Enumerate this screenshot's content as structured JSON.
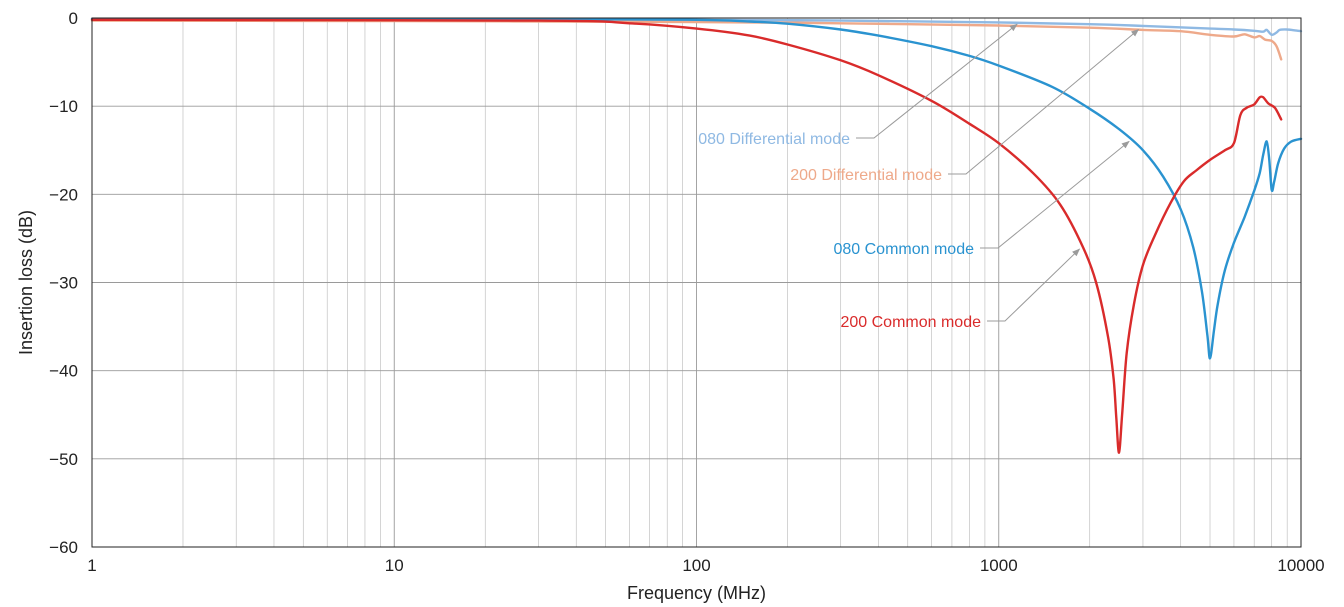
{
  "chart_data": {
    "type": "line",
    "xlabel": "Frequency (MHz)",
    "ylabel": "Insertion loss (dB)",
    "xscale": "log",
    "xlim": [
      1,
      10000
    ],
    "ylim": [
      -60,
      0
    ],
    "grid": true,
    "x_ticks": [
      "1",
      "10",
      "100",
      "1000",
      "10000"
    ],
    "y_ticks": [
      "0",
      "−10",
      "−20",
      "−30",
      "−40",
      "−50",
      "−60"
    ],
    "series": [
      {
        "name": "080 Differential mode",
        "color": "#8fb9e3",
        "points": [
          [
            1,
            -0.1
          ],
          [
            10,
            -0.15
          ],
          [
            100,
            -0.2
          ],
          [
            300,
            -0.3
          ],
          [
            1000,
            -0.5
          ],
          [
            2000,
            -0.7
          ],
          [
            3000,
            -0.9
          ],
          [
            5000,
            -1.2
          ],
          [
            6000,
            -1.3
          ],
          [
            7000,
            -1.45
          ],
          [
            7500,
            -1.55
          ],
          [
            7700,
            -1.35
          ],
          [
            8000,
            -1.9
          ],
          [
            8300,
            -1.65
          ],
          [
            8500,
            -1.35
          ],
          [
            9000,
            -1.3
          ],
          [
            9500,
            -1.4
          ],
          [
            10000,
            -1.5
          ]
        ]
      },
      {
        "name": "200 Differential mode",
        "color": "#eea98a",
        "points": [
          [
            1,
            -0.3
          ],
          [
            10,
            -0.35
          ],
          [
            100,
            -0.45
          ],
          [
            300,
            -0.6
          ],
          [
            1000,
            -0.85
          ],
          [
            2000,
            -1.1
          ],
          [
            3000,
            -1.35
          ],
          [
            4000,
            -1.5
          ],
          [
            5000,
            -1.9
          ],
          [
            6000,
            -2.1
          ],
          [
            6500,
            -1.85
          ],
          [
            7000,
            -2.2
          ],
          [
            7300,
            -2.05
          ],
          [
            7600,
            -2.45
          ],
          [
            8000,
            -2.6
          ],
          [
            8300,
            -3.2
          ],
          [
            8600,
            -4.7
          ]
        ]
      },
      {
        "name": "080 Common mode",
        "color": "#2a93d0",
        "points": [
          [
            1,
            -0.1
          ],
          [
            30,
            -0.1
          ],
          [
            100,
            -0.2
          ],
          [
            150,
            -0.4
          ],
          [
            200,
            -0.65
          ],
          [
            300,
            -1.3
          ],
          [
            400,
            -2.0
          ],
          [
            600,
            -3.2
          ],
          [
            800,
            -4.3
          ],
          [
            1000,
            -5.4
          ],
          [
            1500,
            -7.8
          ],
          [
            2000,
            -10.3
          ],
          [
            2500,
            -12.6
          ],
          [
            3000,
            -15.0
          ],
          [
            3500,
            -18.0
          ],
          [
            4000,
            -21.7
          ],
          [
            4400,
            -26.0
          ],
          [
            4700,
            -31.0
          ],
          [
            4900,
            -36.0
          ],
          [
            5000,
            -38.6
          ],
          [
            5150,
            -35.5
          ],
          [
            5300,
            -32.5
          ],
          [
            5600,
            -28.6
          ],
          [
            6000,
            -25.5
          ],
          [
            6500,
            -22.6
          ],
          [
            7000,
            -19.6
          ],
          [
            7300,
            -17.6
          ],
          [
            7500,
            -15.5
          ],
          [
            7700,
            -14.0
          ],
          [
            7850,
            -16.0
          ],
          [
            8000,
            -19.5
          ],
          [
            8150,
            -18.6
          ],
          [
            8400,
            -16.5
          ],
          [
            8800,
            -14.8
          ],
          [
            9300,
            -14.0
          ],
          [
            10000,
            -13.7
          ]
        ]
      },
      {
        "name": "200 Common mode",
        "color": "#d92b2b",
        "points": [
          [
            1,
            -0.2
          ],
          [
            30,
            -0.3
          ],
          [
            60,
            -0.6
          ],
          [
            100,
            -1.2
          ],
          [
            150,
            -2.0
          ],
          [
            200,
            -3.0
          ],
          [
            300,
            -4.8
          ],
          [
            400,
            -6.5
          ],
          [
            600,
            -9.4
          ],
          [
            800,
            -12.0
          ],
          [
            1000,
            -14.2
          ],
          [
            1300,
            -17.6
          ],
          [
            1600,
            -21.2
          ],
          [
            1900,
            -26.0
          ],
          [
            2100,
            -30.0
          ],
          [
            2300,
            -36.2
          ],
          [
            2400,
            -41.0
          ],
          [
            2450,
            -45.5
          ],
          [
            2500,
            -49.3
          ],
          [
            2560,
            -45.0
          ],
          [
            2650,
            -38.0
          ],
          [
            2800,
            -32.5
          ],
          [
            3000,
            -28.0
          ],
          [
            3300,
            -24.5
          ],
          [
            3700,
            -21.0
          ],
          [
            4100,
            -18.5
          ],
          [
            4500,
            -17.3
          ],
          [
            5000,
            -16.1
          ],
          [
            5600,
            -15.0
          ],
          [
            6000,
            -14.2
          ],
          [
            6300,
            -11.0
          ],
          [
            6600,
            -10.2
          ],
          [
            7000,
            -9.8
          ],
          [
            7300,
            -9.0
          ],
          [
            7500,
            -9.0
          ],
          [
            7800,
            -9.7
          ],
          [
            8200,
            -10.2
          ],
          [
            8600,
            -11.5
          ]
        ]
      }
    ],
    "annotations": [
      {
        "text": "080 Differential mode",
        "series": "080 Differential mode",
        "color": "#8fb9e3",
        "arrow_to": [
          1150,
          -0.7
        ]
      },
      {
        "text": "200 Differential mode",
        "series": "200 Differential mode",
        "color": "#eea98a",
        "arrow_to": [
          2900,
          -1.3
        ]
      },
      {
        "text": "080 Common mode",
        "series": "080 Common mode",
        "color": "#2a93d0",
        "arrow_to": [
          2700,
          -14.0
        ]
      },
      {
        "text": "200 Common mode",
        "series": "200 Common mode",
        "color": "#d92b2b",
        "arrow_to": [
          1850,
          -26.2
        ]
      }
    ]
  }
}
